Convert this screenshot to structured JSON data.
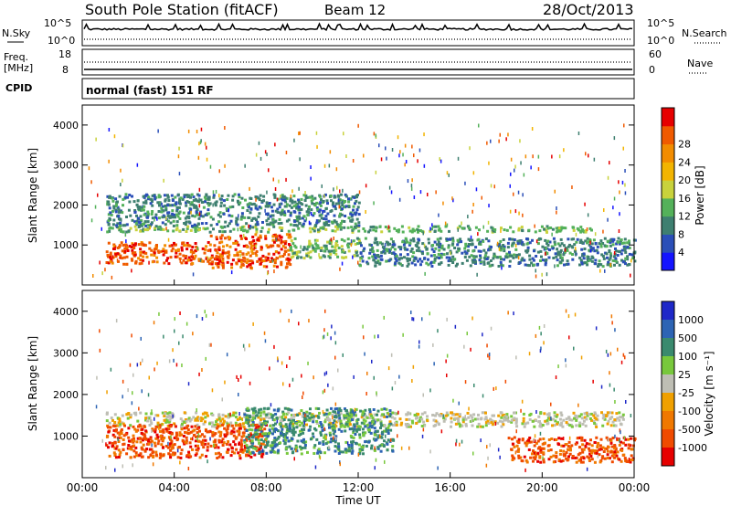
{
  "header": {
    "station": "South Pole Station (fitACF)",
    "beam": "Beam 12",
    "date": "28/Oct/2013"
  },
  "noise_panel": {
    "left_label": "N.Sky",
    "right_label": "N.Search",
    "tick_top": "10^5",
    "tick_bottom": "10^0"
  },
  "freq_panel": {
    "left_label_line1": "Freq.",
    "left_label_line2": "[MHz]",
    "tick_top": "18",
    "tick_bottom": "8",
    "right_label": "Nave",
    "right_tick_top": "60",
    "right_tick_bottom": "0"
  },
  "cpid": {
    "label": "CPID",
    "value": "normal (fast) 151 RF"
  },
  "chart_data": [
    {
      "type": "heatmap",
      "title": "",
      "ylabel": "Slant Range [km]",
      "xlabel": "",
      "ylim": [
        0,
        4500
      ],
      "yticks": [
        "1000",
        "2000",
        "3000",
        "4000"
      ],
      "colorbar": {
        "label": "Power [dB]",
        "ticks": [
          "4",
          "8",
          "12",
          "16",
          "20",
          "24",
          "28"
        ],
        "range": [
          0,
          30
        ],
        "colors": [
          "#1414ff",
          "#2b4fb8",
          "#3e7f70",
          "#54b15a",
          "#c8d23c",
          "#f2b400",
          "#f28c00",
          "#f05a00",
          "#e60000"
        ]
      },
      "features": [
        {
          "x": [
            1.0,
            22.5
          ],
          "y": [
            1350,
            1500
          ],
          "value": 10
        },
        {
          "x": [
            1.0,
            5.5
          ],
          "y": [
            550,
            1100
          ],
          "value": 28
        },
        {
          "x": [
            5.5,
            9.0
          ],
          "y": [
            450,
            1300
          ],
          "value": 28
        },
        {
          "x": [
            9.0,
            12.0
          ],
          "y": [
            700,
            1200
          ],
          "value": 12
        },
        {
          "x": [
            12.0,
            24.0
          ],
          "y": [
            500,
            1200
          ],
          "value": 6
        },
        {
          "x": [
            1.0,
            12.0
          ],
          "y": [
            1500,
            2300
          ],
          "value": 6
        }
      ]
    },
    {
      "type": "heatmap",
      "title": "",
      "ylabel": "Slant Range [km]",
      "xlabel": "Time UT",
      "ylim": [
        0,
        4500
      ],
      "yticks": [
        "1000",
        "2000",
        "3000",
        "4000"
      ],
      "colorbar": {
        "label": "Velocity [m s⁻¹]",
        "ticks": [
          "1000",
          "500",
          "100",
          "25",
          "-25",
          "-100",
          "-500",
          "-1000"
        ],
        "colors": [
          "#1e28c8",
          "#2d64b4",
          "#3a8a6e",
          "#78c83c",
          "#bebeb4",
          "#f0a000",
          "#f07800",
          "#f04b00",
          "#e60000"
        ]
      },
      "features": [
        {
          "x": [
            1.0,
            23.5
          ],
          "y": [
            1250,
            1600
          ],
          "value": 0
        },
        {
          "x": [
            1.0,
            8.0
          ],
          "y": [
            500,
            1300
          ],
          "value": -500
        },
        {
          "x": [
            7.0,
            13.5
          ],
          "y": [
            600,
            1700
          ],
          "value": 250
        },
        {
          "x": [
            18.5,
            24.0
          ],
          "y": [
            400,
            1000
          ],
          "value": -500
        }
      ]
    }
  ],
  "time_axis": {
    "label": "Time UT",
    "ticks": [
      "00:00",
      "04:00",
      "08:00",
      "12:00",
      "16:00",
      "20:00",
      "00:00"
    ]
  }
}
